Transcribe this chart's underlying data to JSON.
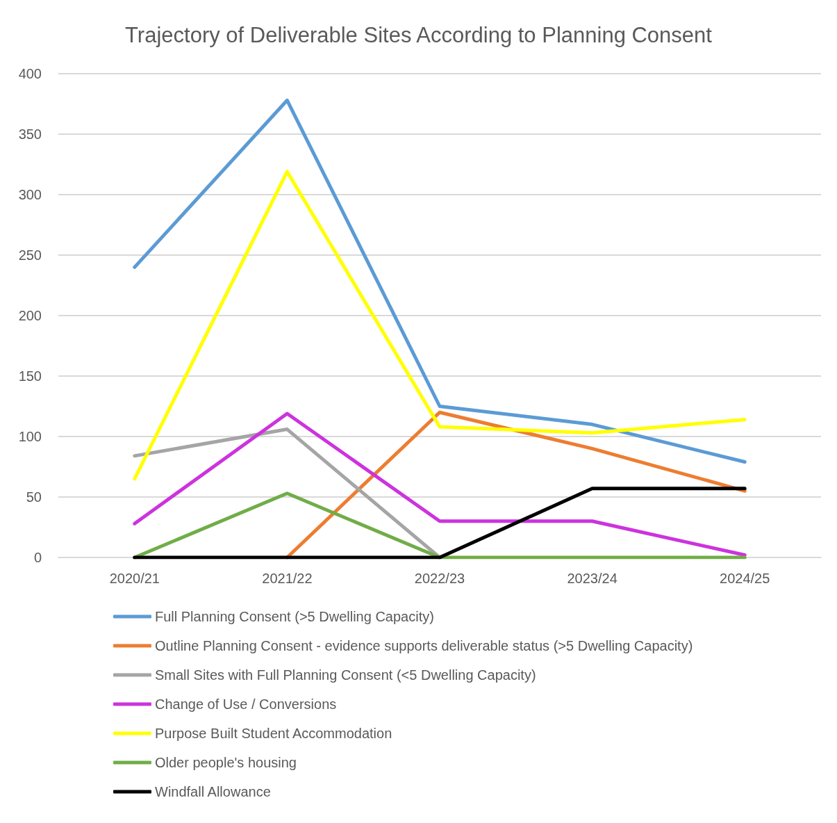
{
  "chart_data": {
    "type": "line",
    "title": "Trajectory of Deliverable Sites According to Planning Consent",
    "categories": [
      "2020/21",
      "2021/22",
      "2022/23",
      "2023/24",
      "2024/25"
    ],
    "series": [
      {
        "name": "Full Planning Consent (>5 Dwelling Capacity)",
        "color": "#5b9bd5",
        "values": [
          240,
          378,
          125,
          110,
          79
        ]
      },
      {
        "name": "Outline Planning Consent - evidence supports deliverable status (>5 Dwelling Capacity)",
        "color": "#ed7d31",
        "values": [
          null,
          0,
          120,
          90,
          55
        ]
      },
      {
        "name": "Small Sites with Full Planning Consent (<5 Dwelling Capacity)",
        "color": "#a5a5a5",
        "values": [
          84,
          106,
          0,
          null,
          null
        ]
      },
      {
        "name": "Change of Use / Conversions",
        "color": "#cc33dd",
        "values": [
          28,
          119,
          30,
          30,
          2
        ]
      },
      {
        "name": "Purpose Built Student Accommodation",
        "color": "#ffff00",
        "values": [
          65,
          319,
          108,
          103,
          114
        ]
      },
      {
        "name": "Older people's housing",
        "color": "#70ad47",
        "values": [
          0,
          53,
          0,
          0,
          0
        ]
      },
      {
        "name": "Windfall Allowance",
        "color": "#000000",
        "values": [
          0,
          0,
          0,
          57,
          57
        ]
      }
    ],
    "ylim": [
      0,
      400
    ],
    "yticks": [
      0,
      50,
      100,
      150,
      200,
      250,
      300,
      350,
      400
    ],
    "grid": "y",
    "legend": "bottom",
    "marker": "none",
    "line_style": "solid"
  }
}
